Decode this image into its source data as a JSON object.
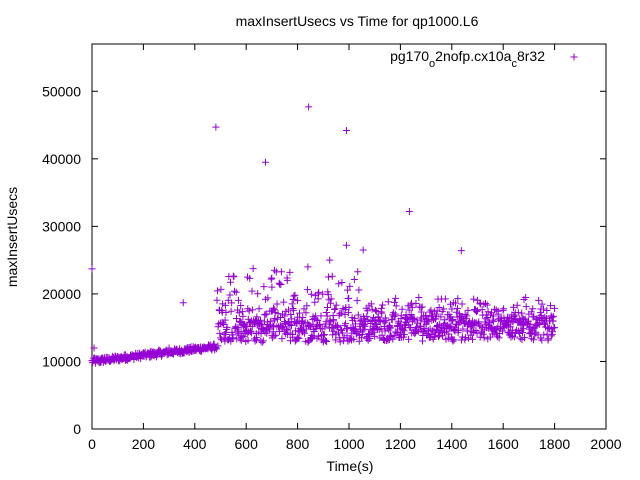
{
  "chart_data": {
    "type": "scatter",
    "title": "maxInsertUsecs vs Time for qp1000.L6",
    "xlabel": "Time(s)",
    "ylabel": "maxInsertUsecs",
    "xlim": [
      0,
      2000
    ],
    "ylim": [
      0,
      57000
    ],
    "xticks": [
      0,
      200,
      400,
      600,
      800,
      1000,
      1200,
      1400,
      1600,
      1800,
      2000
    ],
    "yticks": [
      0,
      10000,
      20000,
      30000,
      40000,
      50000
    ],
    "grid": false,
    "legend_position": "top-right",
    "series": [
      {
        "name_parts": [
          "pg170",
          "o",
          "2nofp.cx10a",
          "c",
          "8r32"
        ],
        "color": "#9400d3",
        "marker": "plus",
        "x": [
          0,
          10,
          20,
          35,
          50,
          70,
          90,
          110,
          130,
          150,
          170,
          200,
          230,
          260,
          300,
          330,
          370,
          400,
          430,
          470,
          490,
          500,
          520,
          540,
          560,
          580,
          600,
          620,
          640,
          660,
          680,
          700,
          720,
          740,
          760,
          780,
          800,
          820,
          840,
          860,
          880,
          900,
          920,
          940,
          960,
          980,
          1000,
          1020,
          1040,
          1060,
          1080,
          1100,
          1120,
          1140,
          1160,
          1180,
          1200,
          1220,
          1240,
          1260,
          1280,
          1300,
          1320,
          1340,
          1360,
          1380,
          1400,
          1420,
          1440,
          1460,
          1480,
          1500,
          1520,
          1540,
          1560,
          1580,
          1600,
          1620,
          1640,
          1660,
          1680,
          1700,
          1720,
          1740,
          1760,
          1780,
          1800,
          482,
          675,
          843,
          990,
          1235,
          1437,
          8,
          355,
          990,
          1055,
          710,
          925
        ],
        "y": [
          23700,
          10500,
          10200,
          10400,
          10600,
          10300,
          10800,
          10500,
          11000,
          10900,
          11200,
          11300,
          11500,
          11700,
          12000,
          11800,
          12000,
          11900,
          12100,
          12200,
          12300,
          13500,
          14000,
          13000,
          15000,
          13800,
          14500,
          16000,
          13200,
          15500,
          17000,
          21000,
          18500,
          15000,
          22000,
          14000,
          19000,
          16500,
          24000,
          15500,
          20000,
          14000,
          22500,
          16000,
          21500,
          13500,
          18000,
          14500,
          13000,
          15500,
          14000,
          16000,
          13500,
          14500,
          15000,
          17000,
          14000,
          16500,
          15000,
          14500,
          18000,
          15500,
          14000,
          17000,
          15000,
          14500,
          16000,
          15500,
          18500,
          14500,
          16000,
          17500,
          15000,
          16500,
          14500,
          17000,
          15500,
          16000,
          18000,
          14500,
          15500,
          17000,
          15000,
          16500,
          15500,
          16000,
          15000,
          44700,
          39500,
          47700,
          44200,
          32200,
          26400,
          12000,
          18700,
          27200,
          26500,
          23500,
          25000
        ]
      }
    ],
    "generator": {
      "time_range": [
        0,
        1800
      ],
      "note": "dense cloud rendered from the reference points above"
    }
  }
}
